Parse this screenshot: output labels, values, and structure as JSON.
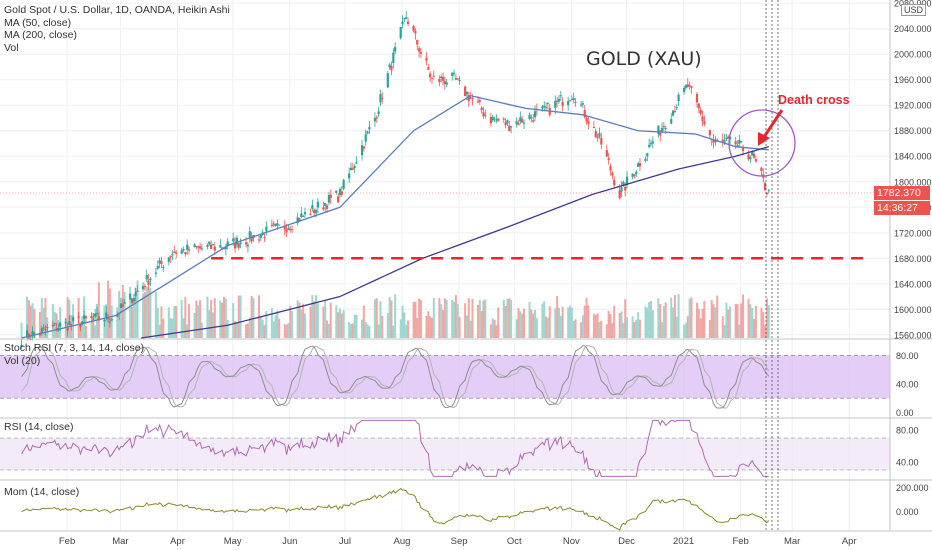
{
  "legend": {
    "symbol": "Gold Spot / U.S. Dollar, 1D, OANDA, Heikin Ashi",
    "ma50": "MA (50, close)",
    "ma200": "MA (200, close)",
    "vol": "Vol"
  },
  "currency_badge": "USD",
  "annotations": {
    "title": "GOLD (XAU)",
    "death_cross": "Death cross"
  },
  "price_badges": {
    "last": "1782.370",
    "countdown": "14:36:27"
  },
  "colors": {
    "up": "#26a69a",
    "down": "#ef5350",
    "ma50": "#5b7ebc",
    "ma200": "#3f3a8c",
    "annotation_red": "#e8262d",
    "circle": "#a259c7",
    "band": "#d9b8f2",
    "stoch_k": "#8e8e8e",
    "stoch_d": "#b4b4b4",
    "rsi": "#b06ab3",
    "mom": "#8a8a2a",
    "vol_ma": "#ef7a3c"
  },
  "panes": {
    "stoch": "Stoch RSI (7, 3, 14, 14, close)",
    "vol20": "Vol (20)",
    "rsi": "RSI (14, close)",
    "mom": "Mom (14, close)"
  },
  "chart_data": [
    {
      "type": "candlestick",
      "title": "",
      "yticks": [
        1560,
        1600,
        1640,
        1680,
        1720,
        1760,
        1800,
        1840,
        1880,
        1920,
        1960,
        2000,
        2040,
        2080
      ],
      "ytick_labels": [
        "1560.000",
        "1600.000",
        "1640.000",
        "1680.000",
        "1720.000",
        "1760.000",
        "1800.000",
        "1840.000",
        "1880.000",
        "1920.000",
        "1960.000",
        "2000.000",
        "2040.000",
        "2080.000"
      ],
      "ylim": [
        1555,
        2085
      ],
      "xtick_labels": [
        "Feb",
        "Mar",
        "Apr",
        "May",
        "Jun",
        "Jul",
        "Aug",
        "Sep",
        "Oct",
        "Nov",
        "Dec",
        "2021",
        "Feb",
        "Mar",
        "Apr"
      ],
      "x": [
        "2020-01-10",
        "2020-02-01",
        "2020-03-01",
        "2020-04-01",
        "2020-05-01",
        "2020-06-01",
        "2020-07-01",
        "2020-07-20",
        "2020-08-06",
        "2020-08-20",
        "2020-09-01",
        "2020-09-20",
        "2020-10-01",
        "2020-10-20",
        "2020-11-05",
        "2020-11-20",
        "2020-11-30",
        "2020-12-15",
        "2021-01-06",
        "2021-01-20",
        "2021-02-01",
        "2021-02-10",
        "2021-02-19"
      ],
      "close": [
        1555,
        1575,
        1590,
        1690,
        1700,
        1730,
        1780,
        1900,
        2060,
        1960,
        1960,
        1900,
        1890,
        1910,
        1940,
        1860,
        1780,
        1850,
        1950,
        1860,
        1860,
        1840,
        1780
      ],
      "series": [
        {
          "name": "MA (50, close)",
          "x": [
            "2020-01-10",
            "2020-03-01",
            "2020-05-01",
            "2020-07-01",
            "2020-08-10",
            "2020-09-10",
            "2020-10-10",
            "2020-11-10",
            "2020-12-10",
            "2021-01-10",
            "2021-02-01",
            "2021-02-19"
          ],
          "values": [
            1555,
            1590,
            1700,
            1760,
            1880,
            1935,
            1915,
            1905,
            1880,
            1875,
            1855,
            1850
          ]
        },
        {
          "name": "MA (200, close)",
          "x": [
            "2020-03-15",
            "2020-05-01",
            "2020-07-01",
            "2020-08-15",
            "2020-10-01",
            "2020-11-15",
            "2021-01-01",
            "2021-02-01",
            "2021-02-19"
          ],
          "values": [
            1555,
            1575,
            1620,
            1680,
            1730,
            1780,
            1820,
            1840,
            1855
          ]
        }
      ],
      "hlines": [
        1680
      ],
      "last_price": 1782.37
    },
    {
      "type": "line",
      "title": "Stoch RSI (7, 3, 14, 14, close)",
      "yticks": [
        0,
        40,
        80
      ],
      "ytick_labels": [
        "0.00",
        "40.00",
        "80.00"
      ],
      "band": [
        20,
        80
      ],
      "ylim": [
        -5,
        100
      ]
    },
    {
      "type": "line",
      "title": "RSI (14, close)",
      "yticks": [
        40,
        80
      ],
      "ytick_labels": [
        "40.00",
        "80.00"
      ],
      "band": [
        30,
        70
      ],
      "ylim": [
        20,
        95
      ]
    },
    {
      "type": "line",
      "title": "Mom (14, close)",
      "yticks": [
        0,
        200
      ],
      "ytick_labels": [
        "0.000",
        "200.000"
      ],
      "ylim": [
        -150,
        260
      ]
    }
  ]
}
